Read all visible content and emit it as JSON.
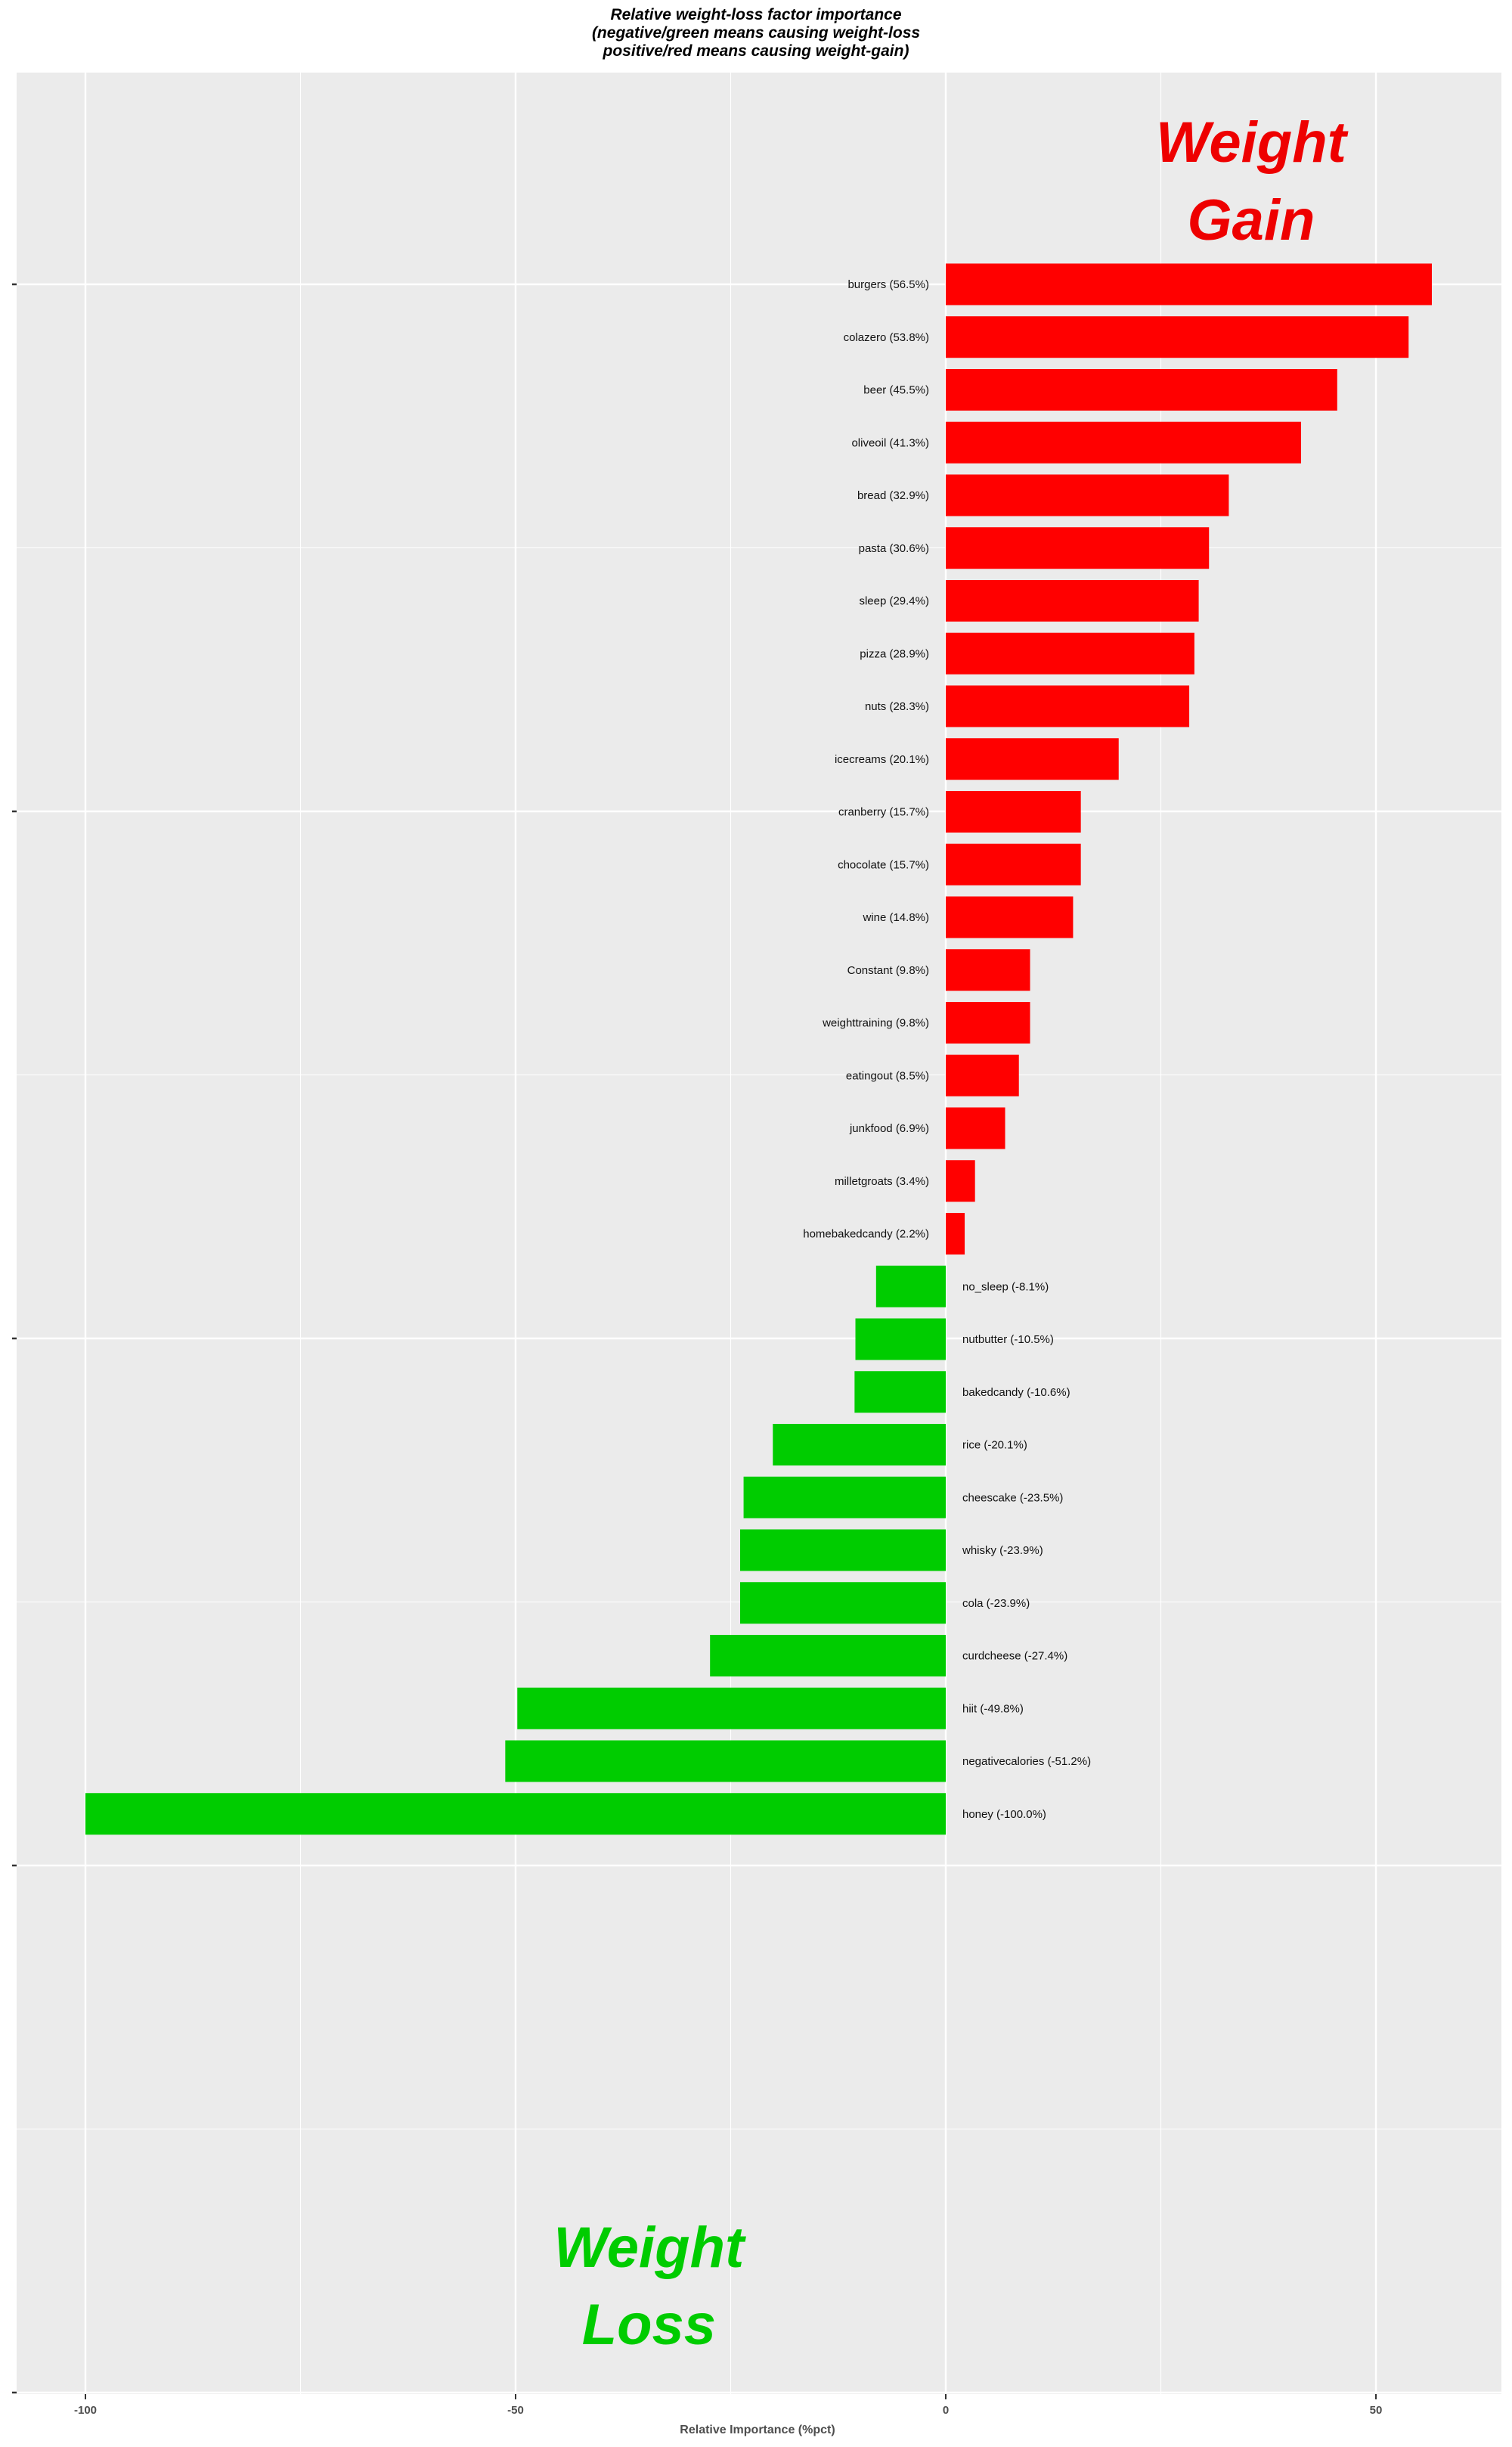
{
  "chart_data": {
    "type": "bar",
    "orientation": "horizontal",
    "title_lines": [
      "Relative weight-loss factor importance",
      "(negative/green means causing weight-loss",
      "positive/red means causing weight-gain)"
    ],
    "xlabel": "Relative Importance (%pct)",
    "ylabel": "",
    "xlim": [
      -110,
      64
    ],
    "xticks": [
      -100,
      -50,
      0,
      50
    ],
    "xtick_labels": [
      "-100",
      "-50",
      "0",
      "50"
    ],
    "grid": true,
    "colors": {
      "positive": "#ff0000",
      "negative": "#00cc00",
      "panel": "#ebebeb",
      "grid": "#ffffff"
    },
    "bars": [
      {
        "label": "burgers (56.5%)",
        "value": 56.5
      },
      {
        "label": "colazero (53.8%)",
        "value": 53.8
      },
      {
        "label": "beer (45.5%)",
        "value": 45.5
      },
      {
        "label": "oliveoil (41.3%)",
        "value": 41.3
      },
      {
        "label": "bread (32.9%)",
        "value": 32.9
      },
      {
        "label": "pasta (30.6%)",
        "value": 30.6
      },
      {
        "label": "sleep (29.4%)",
        "value": 29.4
      },
      {
        "label": "pizza (28.9%)",
        "value": 28.9
      },
      {
        "label": "nuts (28.3%)",
        "value": 28.3
      },
      {
        "label": "icecreams (20.1%)",
        "value": 20.1
      },
      {
        "label": "cranberry (15.7%)",
        "value": 15.7
      },
      {
        "label": "chocolate (15.7%)",
        "value": 15.7
      },
      {
        "label": "wine (14.8%)",
        "value": 14.8
      },
      {
        "label": "Constant (9.8%)",
        "value": 9.8
      },
      {
        "label": "weighttraining (9.8%)",
        "value": 9.8
      },
      {
        "label": "eatingout (8.5%)",
        "value": 8.5
      },
      {
        "label": "junkfood (6.9%)",
        "value": 6.9
      },
      {
        "label": "milletgroats (3.4%)",
        "value": 3.4
      },
      {
        "label": "homebakedcandy (2.2%)",
        "value": 2.2
      },
      {
        "label": "no_sleep (-8.1%)",
        "value": -8.1
      },
      {
        "label": "nutbutter (-10.5%)",
        "value": -10.5
      },
      {
        "label": "bakedcandy (-10.6%)",
        "value": -10.6
      },
      {
        "label": "rice (-20.1%)",
        "value": -20.1
      },
      {
        "label": "cheescake (-23.5%)",
        "value": -23.5
      },
      {
        "label": "whisky (-23.9%)",
        "value": -23.9
      },
      {
        "label": "cola (-23.9%)",
        "value": -23.9
      },
      {
        "label": "curdcheese (-27.4%)",
        "value": -27.4
      },
      {
        "label": "hiit (-49.8%)",
        "value": -49.8
      },
      {
        "label": "negativecalories (-51.2%)",
        "value": -51.2
      },
      {
        "label": "honey (-100.0%)",
        "value": -100.0
      }
    ],
    "annotations": [
      {
        "lines": [
          "Weight",
          "Gain"
        ],
        "color": "#ee0000",
        "x": 35.5
      },
      {
        "lines": [
          "Weight",
          "Loss"
        ],
        "color": "#00cc00",
        "x": -34.5
      }
    ]
  }
}
